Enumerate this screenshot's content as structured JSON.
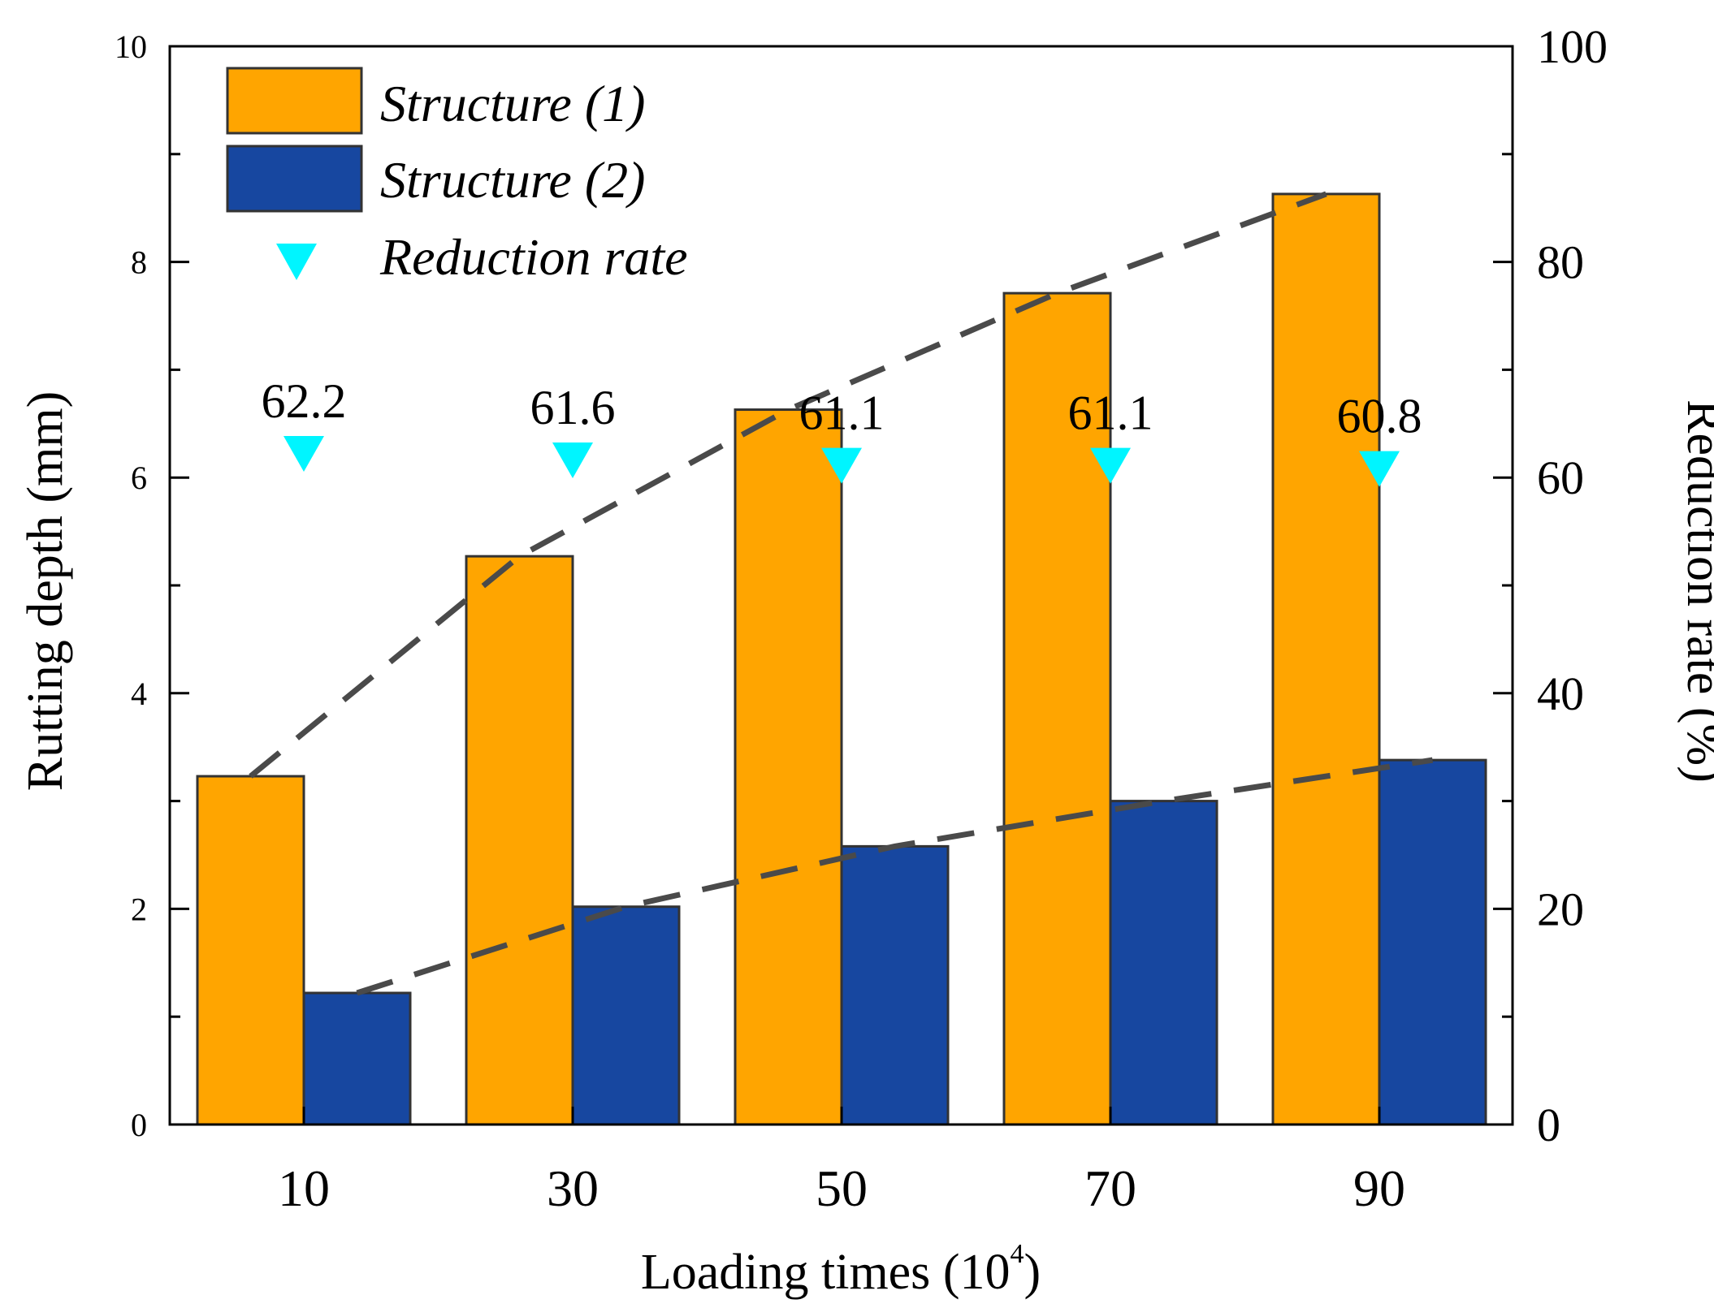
{
  "chart_data": {
    "type": "bar",
    "categories": [
      "10",
      "30",
      "50",
      "70",
      "90"
    ],
    "series": [
      {
        "name": "Structure (1)",
        "values": [
          3.23,
          5.27,
          6.63,
          7.71,
          8.63
        ],
        "color": "#FFA500"
      },
      {
        "name": "Structure (2)",
        "values": [
          1.22,
          2.02,
          2.58,
          3.0,
          3.38
        ],
        "color": "#1747A0"
      }
    ],
    "reduction_rate": {
      "name": "Reduction rate",
      "values": [
        62.2,
        61.6,
        61.1,
        61.1,
        60.8
      ],
      "labels": [
        "62.2",
        "61.6",
        "61.1",
        "61.1",
        "60.8"
      ],
      "color": "#00F5FF"
    },
    "trend_lines": {
      "structure_1": {
        "x": [
          "10",
          "30",
          "50",
          "70",
          "90"
        ],
        "y": [
          3.23,
          5.27,
          6.63,
          7.71,
          8.63
        ]
      },
      "structure_2": {
        "x": [
          "10",
          "30",
          "50",
          "70",
          "90"
        ],
        "y": [
          1.22,
          2.02,
          2.58,
          3.0,
          3.38
        ]
      }
    },
    "xlabel": "Loading times (10",
    "xlabel_sup": "4",
    "xlabel_close": ")",
    "ylabel": "Rutting depth (mm)",
    "y2label": "Reduction rate (%)",
    "ylim": [
      0,
      10
    ],
    "y2lim": [
      0,
      100
    ],
    "yticks": [
      "0",
      "2",
      "4",
      "6",
      "8",
      "10"
    ],
    "y2ticks": [
      "0",
      "20",
      "40",
      "60",
      "80",
      "100"
    ],
    "legend": [
      "Structure (1)",
      "Structure (2)",
      "Reduction rate"
    ],
    "legend_position": "top-left",
    "trend_color": "#4A4A4A"
  }
}
